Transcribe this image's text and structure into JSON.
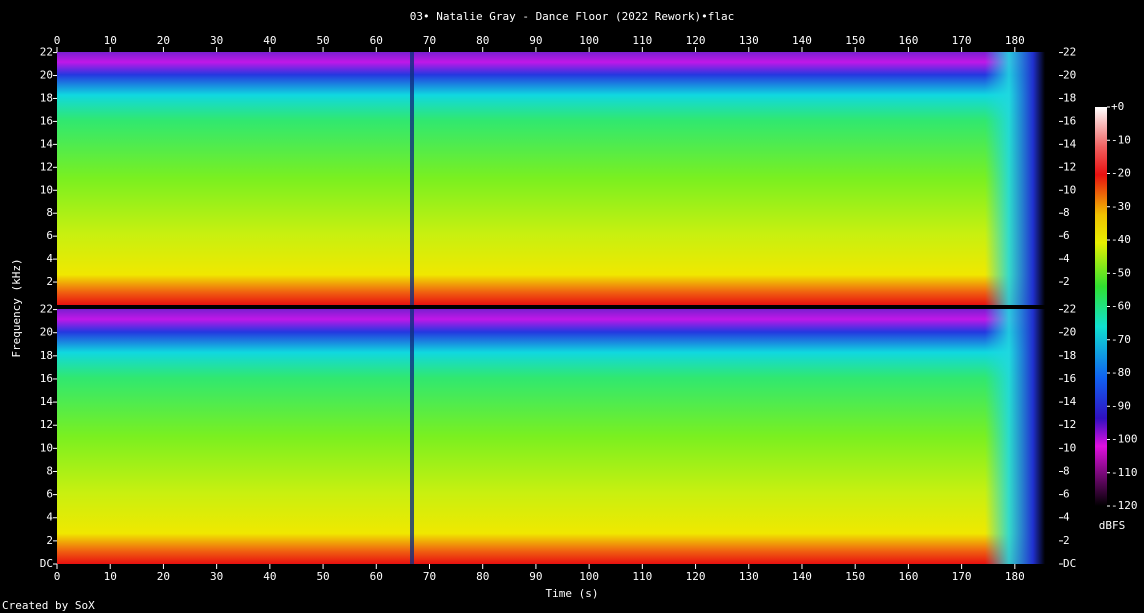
{
  "chart_data": {
    "type": "spectrogram",
    "title": "03• Natalie Gray - Dance Floor (2022 Rework)•flac",
    "x_label": "Time (s)",
    "y_label": "Frequency (kHz)",
    "xlim": [
      0,
      188.3
    ],
    "xticks": [
      0,
      10,
      20,
      30,
      40,
      50,
      60,
      70,
      80,
      90,
      100,
      110,
      120,
      130,
      140,
      150,
      160,
      170,
      180
    ],
    "channels": [
      {
        "ylim": [
          0,
          22.05
        ],
        "yticks": [
          2,
          4,
          6,
          8,
          10,
          12,
          14,
          16,
          18,
          20,
          22
        ]
      },
      {
        "ylim": [
          0,
          22.05
        ],
        "yticks": [
          {
            "value": 0,
            "label": "DC"
          },
          2,
          4,
          6,
          8,
          10,
          12,
          14,
          16,
          18,
          20,
          22
        ]
      }
    ],
    "colorbar": {
      "label": "dBFS",
      "lim": [
        -120,
        0
      ],
      "ticks": [
        {
          "value": 0,
          "label": "+0"
        },
        -10,
        -20,
        -30,
        -40,
        -50,
        -60,
        -70,
        -80,
        -90,
        -100,
        -110,
        -120
      ]
    },
    "footer": "Created by SoX"
  }
}
